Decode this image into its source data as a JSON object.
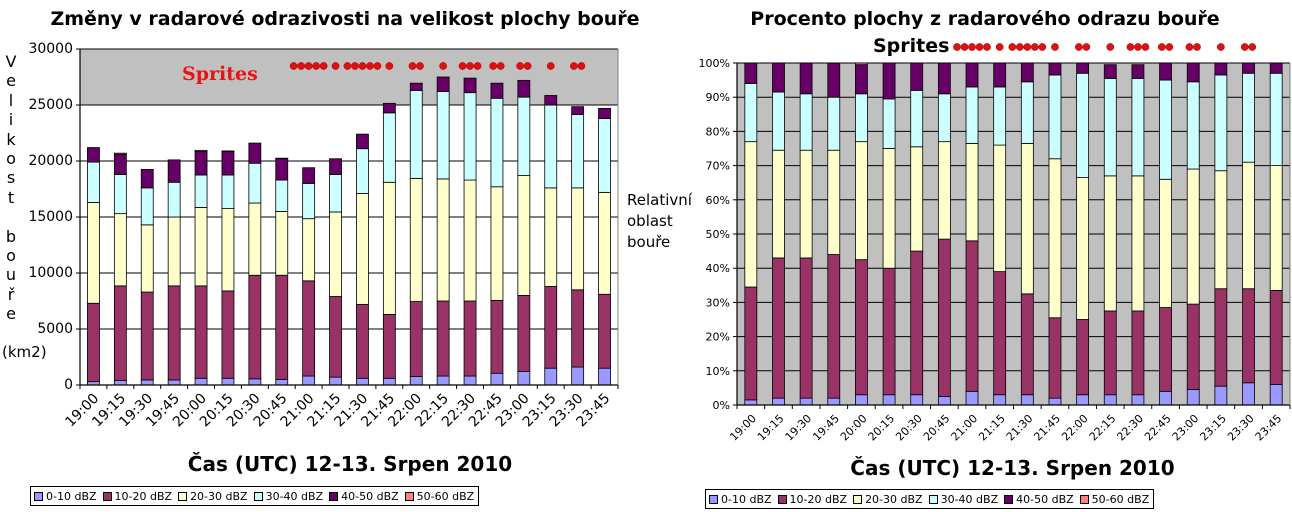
{
  "legend": [
    {
      "label": "0-10 dBZ",
      "color": "#9999ff"
    },
    {
      "label": "10-20 dBZ",
      "color": "#993366"
    },
    {
      "label": "20-30 dBZ",
      "color": "#ffffcc"
    },
    {
      "label": "30-40 dBZ",
      "color": "#ccffff"
    },
    {
      "label": "40-50 dBZ",
      "color": "#660066"
    },
    {
      "label": "50-60 dBZ",
      "color": "#ff8080"
    }
  ],
  "chart_data": [
    {
      "type": "bar",
      "stacked": true,
      "title": "Změny v radarové odrazivosti na velikost plochy bouře",
      "xlabel": "Čas (UTC) 12-13. Srpen 2010",
      "ylabel": "Velikost bouře",
      "ylabel_unit": "(km2)",
      "ylim": [
        0,
        30000
      ],
      "yticks": [
        "0",
        "5000",
        "10000",
        "15000",
        "20000",
        "25000",
        "30000"
      ],
      "categories": [
        "19:00",
        "19:15",
        "19:30",
        "19:45",
        "20:00",
        "20:15",
        "20:30",
        "20:45",
        "21:00",
        "21:15",
        "21:30",
        "21:45",
        "22:00",
        "22:15",
        "22:30",
        "22:45",
        "23:00",
        "23:15",
        "23:30",
        "23:45"
      ],
      "series": [
        {
          "name": "0-10 dBZ",
          "values": [
            300,
            400,
            450,
            450,
            600,
            600,
            550,
            500,
            800,
            700,
            600,
            600,
            750,
            800,
            800,
            1050,
            1200,
            1500,
            1600,
            1500
          ]
        },
        {
          "name": "10-20 dBZ",
          "values": [
            7000,
            8450,
            7850,
            8400,
            8250,
            7800,
            9250,
            9300,
            8500,
            7200,
            6600,
            5700,
            6700,
            6700,
            6700,
            6500,
            6800,
            7300,
            6900,
            6600
          ]
        },
        {
          "name": "20-30 dBZ",
          "values": [
            9000,
            6450,
            6000,
            6150,
            7000,
            7350,
            6450,
            5700,
            5550,
            7550,
            9900,
            11800,
            11000,
            10900,
            10800,
            10150,
            10700,
            8800,
            9100,
            9100
          ]
        },
        {
          "name": "30-40 dBZ",
          "values": [
            3600,
            3500,
            3300,
            3100,
            2900,
            3000,
            3550,
            2800,
            3150,
            3350,
            4000,
            6200,
            7850,
            7800,
            7800,
            7900,
            7000,
            7400,
            6550,
            6600
          ]
        },
        {
          "name": "40-50 dBZ",
          "values": [
            1300,
            1800,
            1650,
            2000,
            2100,
            2100,
            1800,
            1900,
            1400,
            1400,
            1300,
            850,
            650,
            1300,
            1300,
            1350,
            1500,
            850,
            700,
            900
          ]
        },
        {
          "name": "50-60 dBZ",
          "values": [
            0,
            100,
            0,
            0,
            100,
            50,
            0,
            50,
            0,
            0,
            0,
            0,
            0,
            0,
            0,
            0,
            0,
            0,
            0,
            0
          ]
        }
      ],
      "background_band": {
        "from": 25000,
        "to": 30000,
        "color": "#c0c0c0"
      },
      "annotation": {
        "text": "Sprites",
        "color": "#ee1111"
      },
      "sprite_marker_color": "#dd1111",
      "sprite_markers": [
        {
          "interval": 8,
          "count": 5
        },
        {
          "interval": 9,
          "count": 1
        },
        {
          "interval": 10,
          "count": 5
        },
        {
          "interval": 11,
          "count": 1
        },
        {
          "interval": 12,
          "count": 2
        },
        {
          "interval": 13,
          "count": 1
        },
        {
          "interval": 14,
          "count": 3
        },
        {
          "interval": 15,
          "count": 2
        },
        {
          "interval": 16,
          "count": 2
        },
        {
          "interval": 17,
          "count": 1
        },
        {
          "interval": 18,
          "count": 2
        }
      ],
      "grid": true,
      "legend_position": "bottom"
    },
    {
      "type": "bar",
      "stacked": true,
      "percent": true,
      "title": "Procento plochy z radarového odrazu bouře",
      "xlabel": "Čas (UTC) 12-13. Srpen 2010",
      "ylabel": "Relativní oblast bouře",
      "ylim": [
        0,
        100
      ],
      "yticks": [
        "0%",
        "10%",
        "20%",
        "30%",
        "40%",
        "50%",
        "60%",
        "70%",
        "80%",
        "90%",
        "100%"
      ],
      "categories": [
        "19:00",
        "19:15",
        "19:30",
        "19:45",
        "20:00",
        "20:15",
        "20:30",
        "20:45",
        "21:00",
        "21:15",
        "21:30",
        "21:45",
        "22:00",
        "22:15",
        "22:30",
        "22:45",
        "23:00",
        "23:15",
        "23:30",
        "23:45"
      ],
      "series": [
        {
          "name": "0-10 dBZ",
          "values": [
            1.5,
            2,
            2,
            2,
            3,
            3,
            3,
            2.5,
            4,
            3,
            3,
            2,
            3,
            3,
            3,
            4,
            4.5,
            5.5,
            6.5,
            6
          ]
        },
        {
          "name": "10-20 dBZ",
          "values": [
            33,
            41,
            41,
            42,
            39.5,
            37,
            42,
            46,
            44,
            36,
            29.5,
            23.5,
            22,
            24.5,
            24.5,
            24.5,
            25,
            28.5,
            27.5,
            27.5
          ]
        },
        {
          "name": "20-30 dBZ",
          "values": [
            42.5,
            31.5,
            31.5,
            30.5,
            34.5,
            35,
            30.5,
            28.5,
            28.5,
            37,
            44,
            46.5,
            41.5,
            39.5,
            39.5,
            37.5,
            39.5,
            34.5,
            37,
            36.5
          ]
        },
        {
          "name": "30-40 dBZ",
          "values": [
            17,
            17,
            16.5,
            15.5,
            14,
            14.5,
            16.5,
            14,
            16.5,
            17,
            18,
            24.5,
            30.5,
            28.5,
            28.5,
            29,
            25.5,
            28,
            26,
            27
          ]
        },
        {
          "name": "40-50 dBZ",
          "values": [
            6,
            8.5,
            9,
            10,
            8.5,
            10.5,
            8,
            9,
            7,
            7,
            5.5,
            3.5,
            3,
            4,
            4,
            5,
            5.5,
            3.5,
            3,
            3
          ]
        },
        {
          "name": "50-60 dBZ",
          "values": [
            0,
            0,
            0,
            0,
            0.5,
            0,
            0,
            0,
            0,
            0,
            0,
            0,
            0,
            0,
            0,
            0,
            0,
            0,
            0,
            0
          ]
        }
      ],
      "background_color": "#c0c0c0",
      "annotation": {
        "text": "Sprites"
      },
      "sprite_marker_color": "#dd1111",
      "sprite_markers": [
        {
          "interval": 8,
          "count": 5
        },
        {
          "interval": 9,
          "count": 1
        },
        {
          "interval": 10,
          "count": 5
        },
        {
          "interval": 11,
          "count": 1
        },
        {
          "interval": 12,
          "count": 2
        },
        {
          "interval": 13,
          "count": 1
        },
        {
          "interval": 14,
          "count": 3
        },
        {
          "interval": 15,
          "count": 2
        },
        {
          "interval": 16,
          "count": 2
        },
        {
          "interval": 17,
          "count": 1
        },
        {
          "interval": 18,
          "count": 2
        }
      ],
      "grid": true,
      "legend_position": "bottom"
    }
  ]
}
